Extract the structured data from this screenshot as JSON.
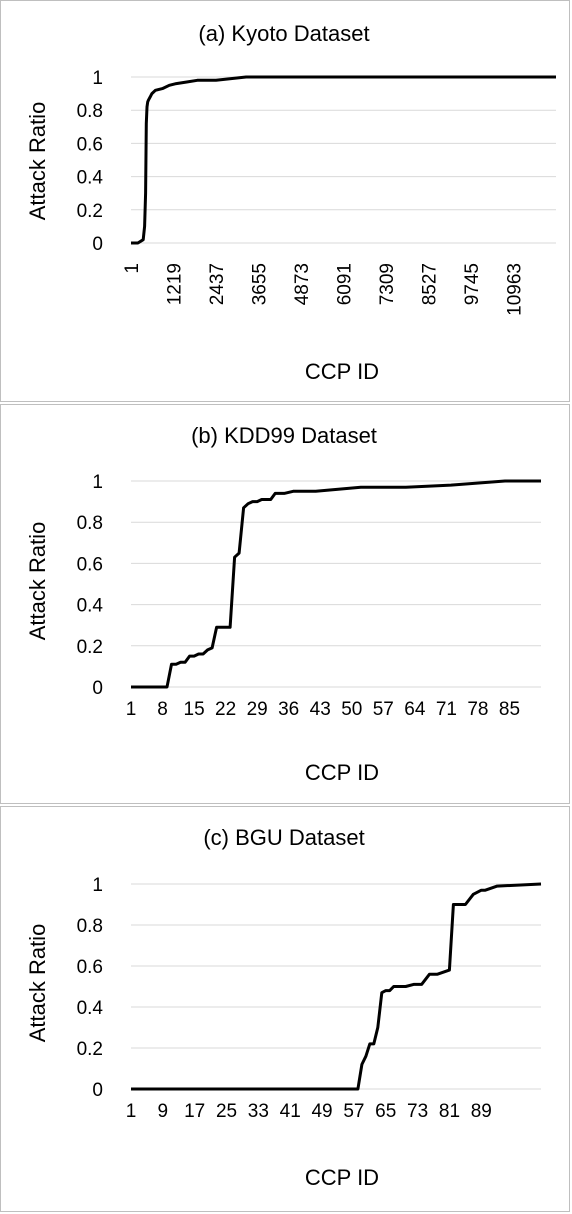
{
  "chart_data": [
    {
      "type": "line",
      "title": "(a) Kyoto Dataset",
      "xlabel": "CCP ID",
      "ylabel": "Attack Ratio",
      "ylim": [
        0,
        1
      ],
      "yticks": [
        "0",
        "0.2",
        "0.4",
        "0.6",
        "0.8",
        "1"
      ],
      "xlim": [
        1,
        12181
      ],
      "xticks": [
        "1",
        "1219",
        "2437",
        "3655",
        "4873",
        "6091",
        "7309",
        "8527",
        "9745",
        "10963"
      ],
      "grid": true,
      "legend": "none",
      "x": [
        1,
        200,
        350,
        390,
        420,
        440,
        460,
        480,
        500,
        550,
        600,
        700,
        900,
        1100,
        1300,
        1600,
        1900,
        2437,
        3300,
        12181
      ],
      "y": [
        0,
        0,
        0.02,
        0.1,
        0.3,
        0.72,
        0.82,
        0.85,
        0.86,
        0.88,
        0.9,
        0.92,
        0.93,
        0.95,
        0.96,
        0.97,
        0.98,
        0.98,
        1.0,
        1.0
      ]
    },
    {
      "type": "line",
      "title": "(b) KDD99 Dataset",
      "xlabel": "CCP ID",
      "ylabel": "Attack Ratio",
      "ylim": [
        0,
        1
      ],
      "yticks": [
        "0",
        "0.2",
        "0.4",
        "0.6",
        "0.8",
        "1"
      ],
      "xlim": [
        1,
        92
      ],
      "xticks": [
        "1",
        "8",
        "15",
        "22",
        "29",
        "36",
        "43",
        "50",
        "57",
        "64",
        "71",
        "78",
        "85"
      ],
      "grid": true,
      "legend": "none",
      "x": [
        1,
        9,
        10,
        11,
        12,
        13,
        14,
        15,
        16,
        17,
        18,
        19,
        20,
        21,
        22,
        23,
        24,
        25,
        26,
        27,
        28,
        29,
        30,
        32,
        33,
        35,
        37,
        40,
        42,
        47,
        52,
        62,
        72,
        84,
        92
      ],
      "y": [
        0,
        0,
        0.11,
        0.11,
        0.12,
        0.12,
        0.15,
        0.15,
        0.16,
        0.16,
        0.18,
        0.19,
        0.29,
        0.29,
        0.29,
        0.29,
        0.63,
        0.65,
        0.87,
        0.89,
        0.9,
        0.9,
        0.91,
        0.91,
        0.94,
        0.94,
        0.95,
        0.95,
        0.95,
        0.96,
        0.97,
        0.97,
        0.98,
        1.0,
        1.0
      ]
    },
    {
      "type": "line",
      "title": "(c) BGU Dataset",
      "xlabel": "CCP ID",
      "ylabel": "Attack Ratio",
      "ylim": [
        0,
        1
      ],
      "yticks": [
        "0",
        "0.2",
        "0.4",
        "0.6",
        "0.8",
        "1"
      ],
      "xlim": [
        1,
        104
      ],
      "xticks": [
        "1",
        "9",
        "17",
        "25",
        "33",
        "41",
        "49",
        "57",
        "65",
        "73",
        "81",
        "89"
      ],
      "grid": true,
      "legend": "none",
      "x": [
        1,
        58,
        59,
        60,
        61,
        62,
        63,
        64,
        65,
        66,
        67,
        69,
        70,
        72,
        74,
        76,
        78,
        81,
        82,
        83,
        84,
        85,
        87,
        89,
        90,
        93,
        104
      ],
      "y": [
        0,
        0,
        0.12,
        0.16,
        0.22,
        0.22,
        0.3,
        0.47,
        0.48,
        0.48,
        0.5,
        0.5,
        0.5,
        0.51,
        0.51,
        0.56,
        0.56,
        0.58,
        0.9,
        0.9,
        0.9,
        0.9,
        0.95,
        0.97,
        0.97,
        0.99,
        1.0
      ]
    }
  ]
}
